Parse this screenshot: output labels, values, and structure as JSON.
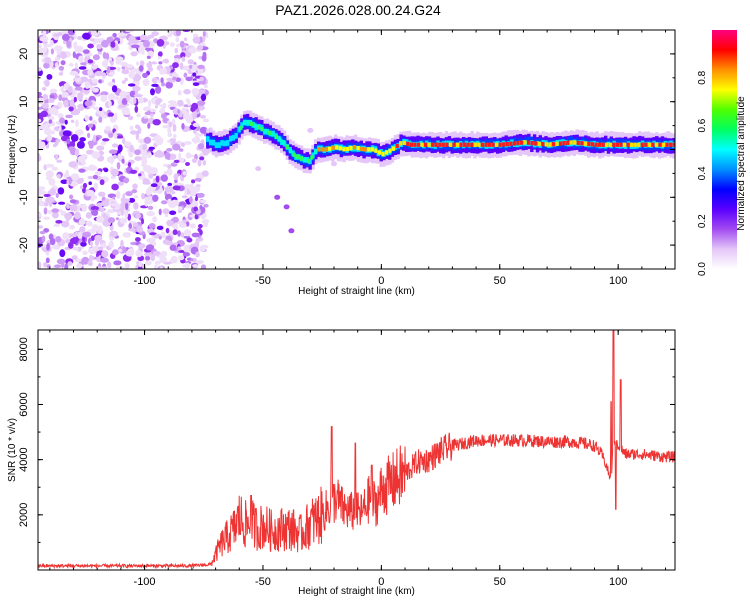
{
  "title": "PAZ1.2026.028.00.24.G24",
  "chart_data": [
    {
      "type": "heatmap",
      "xlabel": "Height of straight line (km)",
      "ylabel": "Frequency (Hz)",
      "xlim": [
        -145,
        124
      ],
      "ylim": [
        -25,
        25
      ],
      "xticks": [
        "-100",
        "-50",
        "0",
        "50",
        "100"
      ],
      "yticks": [
        "-20",
        "-10",
        "0",
        "10",
        "20"
      ],
      "colorbar": {
        "label": "Normalized spectral amplitude",
        "range": [
          0,
          1
        ],
        "ticks": [
          "0.0",
          "0.2",
          "0.4",
          "0.6",
          "0.8"
        ],
        "colors": [
          "#ffffff",
          "#e4c6f8",
          "#a24bf0",
          "#5a00ff",
          "#0000ff",
          "#0090ff",
          "#00ffff",
          "#00ff60",
          "#50ff00",
          "#ffff00",
          "#ff9000",
          "#ff0000",
          "#ff0080"
        ]
      },
      "ridge": {
        "x": [
          -74,
          -70,
          -66,
          -62,
          -58,
          -54,
          -50,
          -46,
          -42,
          -38,
          -34,
          -31,
          -28,
          -24,
          -20,
          -16,
          -12,
          -8,
          -4,
          0,
          4,
          8,
          12,
          20,
          30,
          40,
          50,
          60,
          70,
          80,
          90,
          100,
          110,
          124
        ],
        "y": [
          2.0,
          1.0,
          1.5,
          3.0,
          6.0,
          5.0,
          4.0,
          3.0,
          1.5,
          -1.0,
          -2.0,
          -2.5,
          0.0,
          0.0,
          0.5,
          0.0,
          0.5,
          0.0,
          0.0,
          -1.0,
          0.0,
          1.5,
          1.0,
          1.0,
          1.0,
          1.0,
          1.0,
          1.5,
          1.0,
          1.5,
          1.0,
          1.0,
          1.0,
          1.0
        ]
      }
    },
    {
      "type": "line",
      "xlabel": "Height of straight line (km)",
      "ylabel": "SNR (10 * v/v)",
      "xlim": [
        -145,
        124
      ],
      "ylim": [
        0,
        8700
      ],
      "xticks": [
        "-100",
        "-50",
        "0",
        "50",
        "100"
      ],
      "yticks": [
        "2000",
        "4000",
        "6000",
        "8000"
      ],
      "color": "#ee3333",
      "x": [
        -145,
        -120,
        -100,
        -80,
        -72,
        -68,
        -65,
        -62,
        -60,
        -57,
        -55,
        -52,
        -50,
        -46,
        -42,
        -38,
        -34,
        -30,
        -26,
        -22,
        -19,
        -16,
        -12,
        -8,
        -5,
        -2,
        0,
        5,
        10,
        15,
        20,
        25,
        30,
        35,
        40,
        50,
        60,
        70,
        80,
        85,
        90,
        93,
        95,
        97,
        98,
        99,
        101,
        103,
        110,
        120,
        124
      ],
      "y": [
        150,
        150,
        150,
        150,
        200,
        900,
        1200,
        1500,
        1900,
        1600,
        1700,
        1500,
        1600,
        1400,
        1500,
        1500,
        1300,
        1700,
        1900,
        2300,
        2600,
        2200,
        2100,
        2100,
        2600,
        2400,
        2900,
        3200,
        3500,
        3900,
        4000,
        4300,
        4500,
        4600,
        4700,
        4700,
        4700,
        4650,
        4650,
        4600,
        4500,
        4200,
        3800,
        3200,
        4800,
        4700,
        4400,
        4200,
        4200,
        4100,
        4100
      ],
      "spikes": [
        {
          "x": -55,
          "y": 2700
        },
        {
          "x": -21,
          "y": 5200
        },
        {
          "x": -11,
          "y": 4600
        },
        {
          "x": -4,
          "y": 3800
        },
        {
          "x": 97,
          "y": 6100
        },
        {
          "x": 98,
          "y": 8700
        },
        {
          "x": 99,
          "y": 2200
        },
        {
          "x": 101,
          "y": 6900
        }
      ]
    }
  ]
}
